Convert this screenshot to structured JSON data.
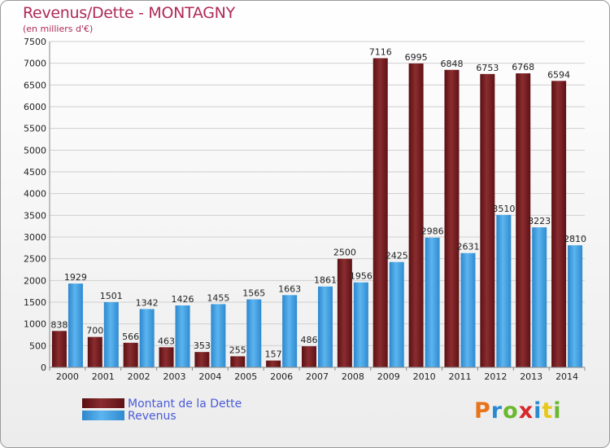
{
  "header": {
    "title": "Revenus/Dette - MONTAGNY",
    "subtitle": "(en milliers d'€)"
  },
  "legend": {
    "debt_label": "Montant de la Dette",
    "revenue_label": "Revenus"
  },
  "logo": {
    "text": "Proxiti",
    "colors": [
      "#e8731a",
      "#2a8ad0",
      "#6ab82e",
      "#d7262c",
      "#2a8ad0",
      "#e8c81a",
      "#6ab82e"
    ]
  },
  "colors": {
    "debt": "#6a1416",
    "debt_light": "#9a3a3c",
    "revenue": "#2a86cf",
    "revenue_light": "#5db4ef"
  },
  "chart_data": {
    "type": "bar",
    "title": "Revenus/Dette - MONTAGNY",
    "ylabel": "(en milliers d'€)",
    "xlabel": "",
    "ylim": [
      0,
      7500
    ],
    "yticks": [
      0,
      500,
      1000,
      1500,
      2000,
      2500,
      3000,
      3500,
      4000,
      4500,
      5000,
      5500,
      6000,
      6500,
      7000,
      7500
    ],
    "grid": true,
    "categories": [
      "2000",
      "2001",
      "2002",
      "2003",
      "2004",
      "2005",
      "2006",
      "2007",
      "2008",
      "2009",
      "2010",
      "2011",
      "2012",
      "2013",
      "2014"
    ],
    "series": [
      {
        "name": "Montant de la Dette",
        "values": [
          838,
          700,
          566,
          463,
          353,
          255,
          157,
          486,
          2500,
          7116,
          6995,
          6848,
          6753,
          6768,
          6594
        ]
      },
      {
        "name": "Revenus",
        "values": [
          1929,
          1501,
          1342,
          1426,
          1455,
          1565,
          1663,
          1861,
          1956,
          2425,
          2986,
          2631,
          3510,
          3223,
          2810
        ]
      }
    ],
    "legend_position": "bottom-left"
  }
}
